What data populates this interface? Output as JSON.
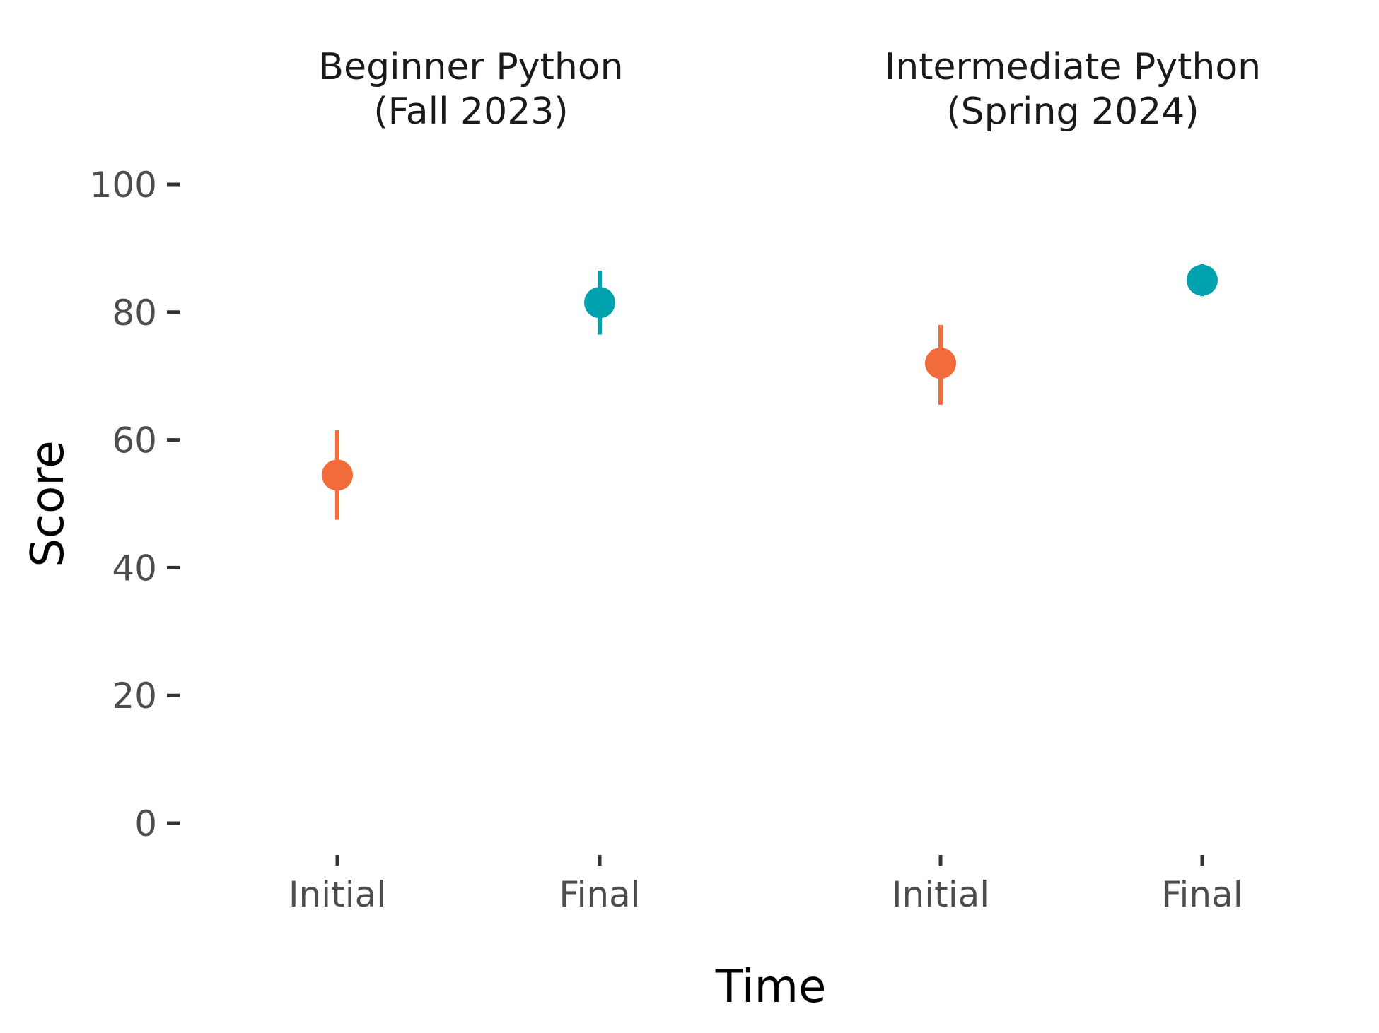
{
  "chart_data": {
    "type": "scatter",
    "subtype": "pointrange",
    "xlabel": "Time",
    "ylabel": "Score",
    "ylim": [
      0,
      100
    ],
    "yticks": [
      0,
      20,
      40,
      60,
      80,
      100
    ],
    "grid": false,
    "legend": "none",
    "colors": {
      "Initial": "#F26B3A",
      "Final": "#00A3AD"
    },
    "panels": [
      {
        "title_lines": [
          "Beginner Python",
          "(Fall 2023)"
        ],
        "categories": [
          "Initial",
          "Final"
        ],
        "points": [
          {
            "x": "Initial",
            "y": 54.5,
            "ymin": 47.5,
            "ymax": 61.5
          },
          {
            "x": "Final",
            "y": 81.5,
            "ymin": 76.5,
            "ymax": 86.5
          }
        ]
      },
      {
        "title_lines": [
          "Intermediate Python",
          "(Spring 2024)"
        ],
        "categories": [
          "Initial",
          "Final"
        ],
        "points": [
          {
            "x": "Initial",
            "y": 72,
            "ymin": 65.5,
            "ymax": 78
          },
          {
            "x": "Final",
            "y": 85,
            "ymin": 82.5,
            "ymax": 87.5
          }
        ]
      }
    ]
  }
}
